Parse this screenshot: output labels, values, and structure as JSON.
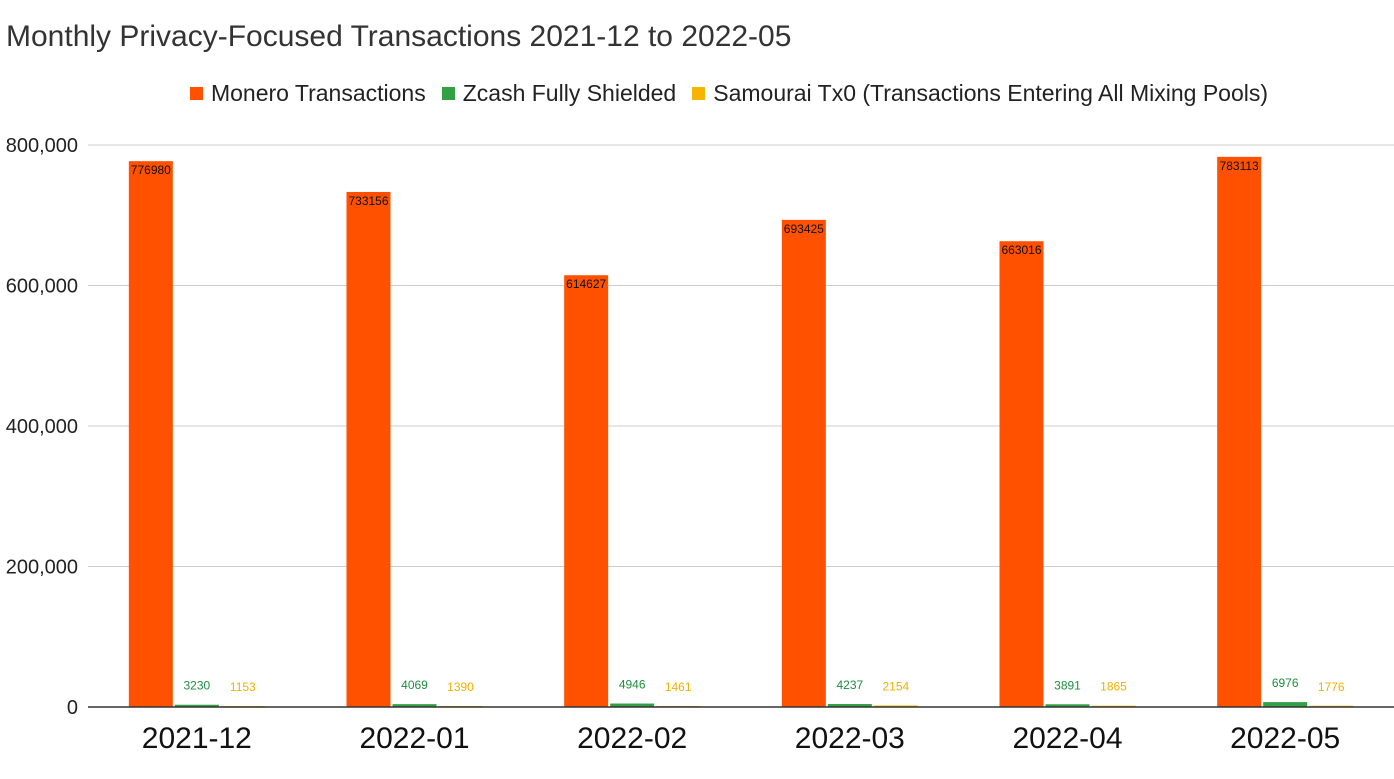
{
  "chart_data": {
    "type": "bar",
    "title": "Monthly Privacy-Focused Transactions 2021-12 to 2022-05",
    "xlabel": "",
    "ylabel": "",
    "categories": [
      "2021-12",
      "2022-01",
      "2022-02",
      "2022-03",
      "2022-04",
      "2022-05"
    ],
    "series": [
      {
        "name": "Monero Transactions",
        "color": "#ff5100",
        "label_color": "#111111",
        "values": [
          776980,
          733156,
          614627,
          693425,
          663016,
          783113
        ]
      },
      {
        "name": "Zcash Fully Shielded",
        "color": "#34a046",
        "label_color": "#1e8e3e",
        "values": [
          3230,
          4069,
          4946,
          4237,
          3891,
          6976
        ]
      },
      {
        "name": "Samourai Tx0 (Transactions Entering All Mixing Pools)",
        "color": "#f4b400",
        "label_color": "#f0b000",
        "values": [
          1153,
          1390,
          1461,
          2154,
          1865,
          1776
        ]
      }
    ],
    "ylim": [
      0,
      800000
    ],
    "yticks": [
      0,
      200000,
      400000,
      600000,
      800000
    ],
    "ytick_labels": [
      "0",
      "200,000",
      "400,000",
      "600,000",
      "800,000"
    ],
    "grid": true,
    "legend_position": "top-center",
    "data_labels": true
  }
}
